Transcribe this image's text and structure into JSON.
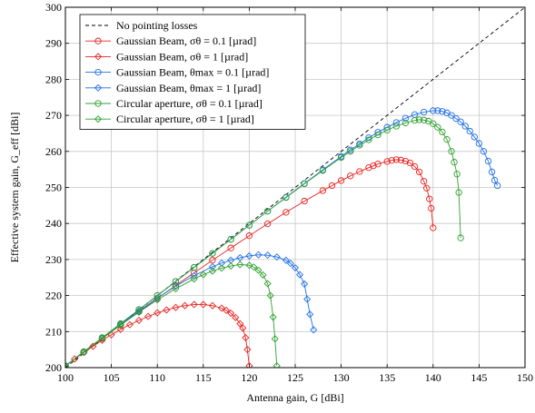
{
  "chart_data": {
    "type": "line",
    "title": "",
    "xlabel": "Antenna gain, G [dBi]",
    "ylabel": "Effective system gain, G_eff [dBi]",
    "xlim": [
      100,
      150
    ],
    "ylim": [
      200,
      300
    ],
    "grid": true,
    "legend_position": "top-left",
    "x_ticks": [
      "100",
      "105",
      "110",
      "115",
      "120",
      "125",
      "130",
      "135",
      "140",
      "145",
      "150"
    ],
    "y_ticks": [
      "200",
      "210",
      "220",
      "230",
      "240",
      "250",
      "260",
      "270",
      "280",
      "290",
      "300"
    ],
    "series": [
      {
        "name": "No pointing losses",
        "color": "#000000",
        "style": "dashed",
        "marker": "none",
        "points": [
          [
            100,
            200
          ],
          [
            150,
            300
          ]
        ]
      },
      {
        "name": "Gaussian Beam, σθ = 0.1 [µrad]",
        "color": "#e8231f",
        "style": "solid",
        "marker": "circle",
        "points": [
          [
            100,
            200.5
          ],
          [
            102,
            204.3
          ],
          [
            104,
            208.1
          ],
          [
            106,
            211.8
          ],
          [
            108,
            215.5
          ],
          [
            110,
            219.2
          ],
          [
            112,
            222.8
          ],
          [
            114,
            226.3
          ],
          [
            116,
            229.8
          ],
          [
            118,
            233.2
          ],
          [
            120,
            236.6
          ],
          [
            122,
            239.9
          ],
          [
            124,
            243.1
          ],
          [
            126,
            246.2
          ],
          [
            128,
            249.1
          ],
          [
            129,
            250.5
          ],
          [
            130,
            251.9
          ],
          [
            131,
            253.2
          ],
          [
            132,
            254.4
          ],
          [
            133,
            255.5
          ],
          [
            133.5,
            256.0
          ],
          [
            134,
            256.5
          ],
          [
            135,
            257.2
          ],
          [
            135.5,
            257.5
          ],
          [
            136,
            257.7
          ],
          [
            136.5,
            257.6
          ],
          [
            137,
            257.3
          ],
          [
            137.5,
            256.8
          ],
          [
            138,
            255.8
          ],
          [
            138.5,
            254.3
          ],
          [
            139,
            251.7
          ],
          [
            139.3,
            249.8
          ],
          [
            139.6,
            246.8
          ],
          [
            139.8,
            244.2
          ],
          [
            140,
            238.8
          ]
        ]
      },
      {
        "name": "Gaussian Beam, σθ = 1 [µrad]",
        "color": "#e8231f",
        "style": "solid",
        "marker": "diamond",
        "points": [
          [
            100,
            200.5
          ],
          [
            101,
            202.4
          ],
          [
            102,
            204.2
          ],
          [
            103,
            205.9
          ],
          [
            104,
            207.6
          ],
          [
            105,
            209.1
          ],
          [
            106,
            210.6
          ],
          [
            107,
            211.9
          ],
          [
            108,
            213.1
          ],
          [
            109,
            214.2
          ],
          [
            110,
            215.2
          ],
          [
            111,
            216.0
          ],
          [
            112,
            216.7
          ],
          [
            113,
            217.2
          ],
          [
            114,
            217.5
          ],
          [
            115,
            217.5
          ],
          [
            116,
            217.2
          ],
          [
            117,
            216.5
          ],
          [
            117.5,
            215.9
          ],
          [
            118,
            215.1
          ],
          [
            118.5,
            213.9
          ],
          [
            119,
            212.2
          ],
          [
            119.3,
            211.0
          ],
          [
            119.6,
            208.3
          ],
          [
            119.8,
            205.0
          ],
          [
            120,
            200.5
          ]
        ]
      },
      {
        "name": "Gaussian Beam, θmax = 0.1 [µrad]",
        "color": "#1f6fe8",
        "style": "solid",
        "marker": "circle",
        "points": [
          [
            100,
            200.5
          ],
          [
            102,
            204.4
          ],
          [
            104,
            208.3
          ],
          [
            106,
            212.2
          ],
          [
            108,
            216.1
          ],
          [
            110,
            220.0
          ],
          [
            112,
            223.9
          ],
          [
            114,
            227.8
          ],
          [
            116,
            231.7
          ],
          [
            118,
            235.6
          ],
          [
            120,
            239.5
          ],
          [
            122,
            243.4
          ],
          [
            124,
            247.3
          ],
          [
            126,
            251.1
          ],
          [
            128,
            254.9
          ],
          [
            130,
            258.6
          ],
          [
            131,
            260.4
          ],
          [
            132,
            262.1
          ],
          [
            133,
            263.8
          ],
          [
            134,
            265.3
          ],
          [
            135,
            266.7
          ],
          [
            136,
            268.0
          ],
          [
            137,
            269.2
          ],
          [
            138,
            270.2
          ],
          [
            139,
            270.9
          ],
          [
            140,
            271.3
          ],
          [
            140.5,
            271.3
          ],
          [
            141,
            271.1
          ],
          [
            141.5,
            270.7
          ],
          [
            142,
            270.0
          ],
          [
            142.5,
            269.1
          ],
          [
            143,
            268.2
          ],
          [
            143.5,
            267.0
          ],
          [
            144,
            265.6
          ],
          [
            144.5,
            264.0
          ],
          [
            145,
            262.2
          ],
          [
            145.5,
            260.0
          ],
          [
            146,
            257.3
          ],
          [
            146.4,
            254.3
          ],
          [
            146.7,
            252.0
          ],
          [
            147,
            250.5
          ]
        ]
      },
      {
        "name": "Gaussian Beam, θmax = 1 [µrad]",
        "color": "#1f6fe8",
        "style": "solid",
        "marker": "diamond",
        "points": [
          [
            100,
            200.5
          ],
          [
            102,
            204.4
          ],
          [
            104,
            208.2
          ],
          [
            106,
            212.0
          ],
          [
            108,
            215.7
          ],
          [
            110,
            219.3
          ],
          [
            112,
            222.6
          ],
          [
            114,
            225.5
          ],
          [
            116,
            228.0
          ],
          [
            117,
            229.0
          ],
          [
            118,
            229.8
          ],
          [
            119,
            230.5
          ],
          [
            120,
            231.0
          ],
          [
            121,
            231.3
          ],
          [
            122,
            231.2
          ],
          [
            123,
            230.7
          ],
          [
            124,
            229.8
          ],
          [
            124.5,
            228.9
          ],
          [
            125,
            227.7
          ],
          [
            125.5,
            225.8
          ],
          [
            126,
            223.2
          ],
          [
            126.3,
            219.0
          ],
          [
            126.6,
            214.8
          ],
          [
            127,
            210.5
          ]
        ]
      },
      {
        "name": "Circular aperture, σθ = 0.1 [µrad]",
        "color": "#2ea02e",
        "style": "solid",
        "marker": "circle",
        "points": [
          [
            100,
            200.5
          ],
          [
            102,
            204.4
          ],
          [
            104,
            208.3
          ],
          [
            106,
            212.2
          ],
          [
            108,
            216.1
          ],
          [
            110,
            220.0
          ],
          [
            112,
            223.9
          ],
          [
            114,
            227.8
          ],
          [
            116,
            231.7
          ],
          [
            118,
            235.6
          ],
          [
            120,
            239.5
          ],
          [
            122,
            243.4
          ],
          [
            124,
            247.2
          ],
          [
            126,
            251.0
          ],
          [
            128,
            254.7
          ],
          [
            130,
            258.3
          ],
          [
            131,
            260.0
          ],
          [
            132,
            261.7
          ],
          [
            133,
            263.2
          ],
          [
            134,
            264.6
          ],
          [
            135,
            265.9
          ],
          [
            136,
            267.0
          ],
          [
            137,
            267.9
          ],
          [
            138,
            268.6
          ],
          [
            138.5,
            268.8
          ],
          [
            139,
            268.7
          ],
          [
            139.5,
            268.4
          ],
          [
            140,
            267.7
          ],
          [
            140.5,
            266.7
          ],
          [
            141,
            265.4
          ],
          [
            141.5,
            263.3
          ],
          [
            142,
            260.0
          ],
          [
            142.3,
            257.0
          ],
          [
            142.6,
            253.7
          ],
          [
            142.8,
            248.6
          ],
          [
            143,
            236.0
          ]
        ]
      },
      {
        "name": "Circular aperture, σθ = 1 [µrad]",
        "color": "#2ea02e",
        "style": "solid",
        "marker": "diamond",
        "points": [
          [
            100,
            200.5
          ],
          [
            102,
            204.3
          ],
          [
            104,
            208.1
          ],
          [
            106,
            211.8
          ],
          [
            108,
            215.4
          ],
          [
            110,
            218.8
          ],
          [
            112,
            221.9
          ],
          [
            114,
            224.6
          ],
          [
            115,
            225.8
          ],
          [
            116,
            226.8
          ],
          [
            117,
            227.6
          ],
          [
            118,
            228.2
          ],
          [
            119,
            228.6
          ],
          [
            120,
            228.4
          ],
          [
            120.5,
            227.9
          ],
          [
            121,
            227.0
          ],
          [
            121.5,
            225.7
          ],
          [
            122,
            223.3
          ],
          [
            122.3,
            220.0
          ],
          [
            122.6,
            214.0
          ],
          [
            122.8,
            208.0
          ],
          [
            123,
            200.5
          ]
        ]
      }
    ]
  }
}
